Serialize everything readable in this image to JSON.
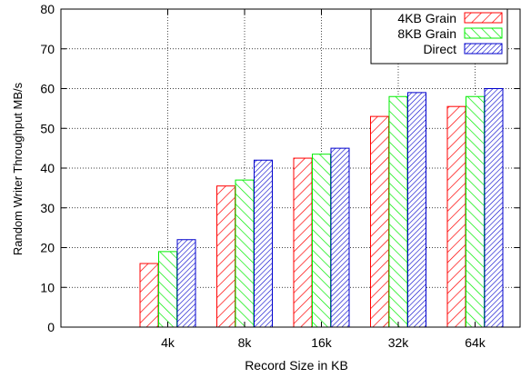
{
  "chart_data": {
    "type": "bar",
    "xlabel": "Record Size in KB",
    "ylabel": "Random Writer Throughput MB/s",
    "categories": [
      "4k",
      "8k",
      "16k",
      "32k",
      "64k"
    ],
    "ylim": [
      0,
      80
    ],
    "yticks": [
      0,
      10,
      20,
      30,
      40,
      50,
      60,
      70,
      80
    ],
    "grid": true,
    "legend_position": "top-right",
    "series": [
      {
        "name": "4KB Grain",
        "color": "#ff0000",
        "pattern": "diagonal-right",
        "values": [
          16,
          35.5,
          42.5,
          53,
          55.5
        ]
      },
      {
        "name": "8KB Grain",
        "color": "#00ee00",
        "pattern": "diagonal-left",
        "values": [
          19,
          37,
          43.5,
          58,
          58
        ]
      },
      {
        "name": "Direct",
        "color": "#0000cc",
        "pattern": "dense-diagonal",
        "values": [
          22,
          42,
          45,
          59,
          60
        ]
      }
    ]
  }
}
